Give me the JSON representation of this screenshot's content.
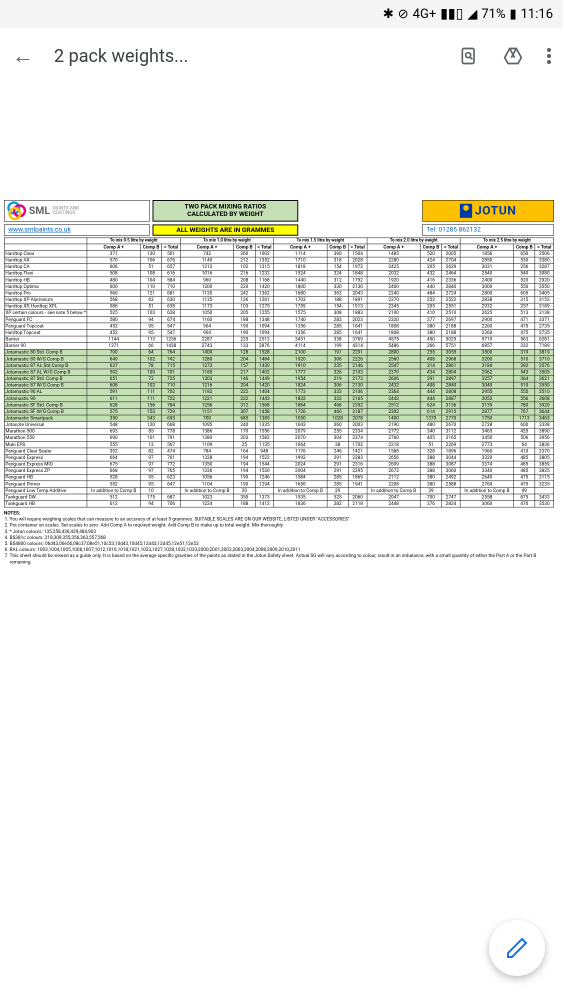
{
  "status": {
    "bt": "✱",
    "dnd": "⊘",
    "net": "4G+",
    "sig": "▮▮▯",
    "wifi": "◢",
    "batt": "71%",
    "time": "11:16"
  },
  "toolbar": {
    "title": "2 pack weights..."
  },
  "doc": {
    "mix_title1": "TWO PACK MIXING RATIOS",
    "mix_title2": "CALCULATED BY WEIGHT",
    "jotun": "JOTUN",
    "url": "www.smlpaints.co.uk",
    "weights_label": "ALL WEIGHTS ARE IN GRAMMES",
    "tel": "Tel: 01285 862132",
    "cols": [
      "To mix 0.5 litre by weight",
      "To mix 1.0 litre by weight",
      "To mix 1.5 litre by weight",
      "To mix 2.0 litre by weight",
      "To mix 2.5 litre by weight"
    ],
    "sub": [
      "Comp A +",
      "Comp B",
      "= Total"
    ],
    "rows": [
      [
        "Hardtop Clear",
        371,
        130,
        501,
        742,
        260,
        1002,
        1114,
        390,
        1504,
        1485,
        520,
        2005,
        1856,
        650,
        2506
      ],
      [
        "Hardtop AX",
        570,
        106,
        676,
        1140,
        212,
        1352,
        1710,
        318,
        2028,
        2280,
        424,
        2704,
        2850,
        530,
        3380
      ],
      [
        "Hardtop CA",
        606,
        51,
        657,
        1212,
        102,
        1315,
        1818,
        154,
        1972,
        2425,
        205,
        2629,
        3031,
        256,
        3287
      ],
      [
        "Hardtop Flexi",
        508,
        108,
        616,
        1016,
        216,
        1232,
        1524,
        324,
        1848,
        2032,
        432,
        2464,
        2540,
        540,
        3080
      ],
      [
        "Hardtop HB",
        480,
        104,
        584,
        960,
        208,
        1168,
        1440,
        312,
        1752,
        1920,
        416,
        2336,
        2400,
        520,
        2920
      ],
      [
        "Hardtop Optima",
        600,
        110,
        710,
        1200,
        220,
        1420,
        1800,
        330,
        2130,
        2400,
        440,
        2840,
        3000,
        550,
        3550
      ],
      [
        "Hardtop Pro",
        560,
        121,
        681,
        1120,
        242,
        1362,
        1680,
        363,
        2043,
        2240,
        484,
        2724,
        2800,
        605,
        3405
      ],
      [
        "Hardtop XP Aluminium",
        568,
        63,
        630,
        1135,
        126,
        1261,
        1703,
        188,
        1891,
        2270,
        252,
        2522,
        2838,
        315,
        3153
      ],
      [
        "Hardtop XP, Hardtop XPL",
        586,
        51,
        638,
        1173,
        103,
        1275,
        1759,
        154,
        1913,
        2345,
        205,
        2551,
        2932,
        257,
        3189
      ],
      [
        "XP certain colours - see note 5 below *",
        525,
        103,
        628,
        1050,
        205,
        1255,
        1575,
        308,
        1883,
        2100,
        410,
        2510,
        2625,
        513,
        3138
      ],
      [
        "Penguard FC",
        580,
        94,
        674,
        1160,
        188,
        1348,
        1740,
        283,
        2023,
        2320,
        377,
        2697,
        2900,
        471,
        3371
      ],
      [
        "Penguard Topcoat",
        452,
        95,
        547,
        904,
        190,
        1094,
        1356,
        285,
        1641,
        1808,
        380,
        2188,
        2260,
        475,
        2735
      ],
      [
        "Hardtop Topcoat",
        452,
        95,
        547,
        904,
        190,
        1094,
        1356,
        285,
        1641,
        1808,
        380,
        2188,
        2260,
        475,
        2735
      ],
      [
        "Barrier",
        1144,
        113,
        1256,
        2287,
        225,
        2512,
        3431,
        338,
        3769,
        4575,
        450,
        5025,
        5719,
        563,
        6281
      ],
      [
        "Barrier 90",
        1371,
        66,
        1438,
        2743,
        133,
        2876,
        4114,
        199,
        4314,
        5486,
        266,
        5751,
        6857,
        332,
        7189
      ],
      [
        "Jotamastic 80 Std. Comp B",
        700,
        64,
        764,
        1400,
        128,
        1528,
        2100,
        191,
        2291,
        2800,
        255,
        3055,
        3500,
        319,
        3819
      ],
      [
        "Jotamastic 80 W/G Comp B",
        640,
        102,
        742,
        1280,
        204,
        1484,
        1920,
        306,
        2226,
        2560,
        408,
        2968,
        3200,
        510,
        3710
      ],
      [
        "Jotamastic 87 AL Std.Comp B",
        637,
        78,
        715,
        1273,
        157,
        1430,
        1910,
        235,
        2146,
        2547,
        314,
        2861,
        3184,
        392,
        3576
      ],
      [
        "Jotamastic 87 AL W/G Comp B",
        592,
        109,
        701,
        1185,
        217,
        1402,
        1777,
        326,
        2103,
        2370,
        434,
        2804,
        2962,
        543,
        3505
      ],
      [
        "Jotamastic 87 Std. Comp B",
        651,
        73,
        725,
        1303,
        146,
        1449,
        1954,
        219,
        2173,
        2606,
        291,
        2897,
        3257,
        364,
        3621
      ],
      [
        "Jotamastic 87 W/G Comp B",
        608,
        102,
        710,
        1216,
        204,
        1420,
        1824,
        306,
        2130,
        2432,
        408,
        2840,
        3040,
        510,
        3550
      ],
      [
        "Jotamastic 90 AL",
        591,
        111,
        702,
        1182,
        222,
        1404,
        1773,
        333,
        2106,
        2364,
        444,
        2808,
        2955,
        555,
        3510
      ],
      [
        "Jotamastic 90",
        611,
        111,
        722,
        1221,
        222,
        1443,
        1832,
        333,
        2165,
        2442,
        444,
        2887,
        3053,
        556,
        3608
      ],
      [
        "Jotamastic SF Std. Comp B",
        628,
        156,
        784,
        1256,
        312,
        1568,
        1884,
        468,
        2352,
        2512,
        624,
        3136,
        3139,
        780,
        3920
      ],
      [
        "Jotamastic SF W/G Comp B",
        575,
        153,
        729,
        1151,
        307,
        1458,
        1726,
        460,
        2187,
        2302,
        614,
        2915,
        2877,
        767,
        3644
      ],
      [
        "Jotamastic Smartpack",
        350,
        343,
        693,
        700,
        685,
        1385,
        1050,
        1028,
        2078,
        1400,
        1370,
        2770,
        1750,
        1713,
        3463
      ],
      [
        "Jotacote Universal",
        548,
        120,
        668,
        1095,
        240,
        1335,
        1643,
        360,
        2003,
        2190,
        480,
        2670,
        2738,
        600,
        3338
      ],
      [
        "Marathon 500",
        693,
        85,
        778,
        1386,
        170,
        1556,
        2079,
        255,
        2334,
        2772,
        340,
        3112,
        3465,
        425,
        3890
      ],
      [
        "Marathon 550",
        690,
        101,
        791,
        1380,
        203,
        1582,
        2070,
        304,
        2374,
        2760,
        405,
        3165,
        3450,
        506,
        3956
      ],
      [
        "Muki EPS",
        555,
        13,
        567,
        1109,
        25,
        1135,
        1664,
        38,
        1702,
        2218,
        51,
        2269,
        2773,
        64,
        2836
      ],
      [
        "Penguard Clear Sealer",
        392,
        82,
        474,
        784,
        164,
        948,
        1176,
        246,
        1421,
        1568,
        328,
        1896,
        1960,
        410,
        2370
      ],
      [
        "Penguard Express",
        664,
        97,
        761,
        1328,
        194,
        1522,
        1992,
        291,
        2283,
        2656,
        388,
        3044,
        3320,
        485,
        3805
      ],
      [
        "Penguard Express MIO",
        675,
        97,
        772,
        1350,
        194,
        1544,
        2024,
        291,
        2316,
        2699,
        388,
        3087,
        3374,
        485,
        3859
      ],
      [
        "Penguard Express ZP",
        668,
        97,
        765,
        1336,
        194,
        1530,
        2004,
        291,
        2295,
        2672,
        388,
        3060,
        3340,
        485,
        3825
      ],
      [
        "Penguard HB",
        528,
        95,
        623,
        1056,
        190,
        1246,
        1584,
        285,
        1869,
        2112,
        380,
        2492,
        2640,
        475,
        3115
      ],
      [
        "Penguard Primer",
        552,
        95,
        647,
        1104,
        190,
        1294,
        1656,
        285,
        1941,
        2208,
        380,
        2588,
        2760,
        475,
        3235
      ],
      [
        "Penguard Low Temp Additive",
        "In addition to Comp B",
        10,
        "",
        "In addition to Comp B",
        20,
        "",
        "In addition to Comp B",
        29,
        "",
        "In addition to Comp B",
        39,
        "",
        "In addition to Comp B",
        49,
        ""
      ],
      [
        "Tankguard DW",
        512,
        175,
        687,
        1023,
        350,
        1373,
        1535,
        525,
        2060,
        2047,
        700,
        2747,
        2558,
        875,
        3433
      ],
      [
        "Tankguard HB",
        612,
        94,
        706,
        1224,
        188,
        1412,
        1836,
        282,
        2118,
        2448,
        376,
        2824,
        3060,
        470,
        3530
      ]
    ],
    "notes_title": "NOTES:",
    "notes": [
      "You will require weighing scales that can measure to an accuracy of at least 5 grammes. SUITABLE SCALES ARE ON OUR WEBSITE, LISTED UNDER \"ACCESSORIES\"",
      "Put container on scales. Set scales to zero. Add Comp A to required weight. Add Comp B to make up to total weight. Mix thoroughly.",
      "* Jotun colours: 135,258,436,439,484,903",
      "  BS381c colours: 218,309,355,356,363,557,568",
      "  BS4800 colours: 06d43,06e56,08c37,08e51,10c53,10d43,10d45,12d43,12d45,12e51,12e53",
      "  RAL colours: 1003,1004,1005,1006,1007,1012,1016,1018,1021,1023,1027,1028,1032,1033,2000,2001,2002,2003,2004,2008,2009,2010,2011",
      "This sheet should be viewed as a guide only. It is based on the average specific gravities of the paints as stated in the Jotun Safety sheet. Actual SG will vary according to colour, result in an imbalance, with a small quantity of either the Part A or the Part B remaining."
    ],
    "hl": {
      "15": 1,
      "16": 1,
      "17": 1,
      "18": 1,
      "19": 1,
      "20": 1,
      "21": 1,
      "22": 1,
      "23": 1,
      "24": 1,
      "25": 1
    }
  }
}
